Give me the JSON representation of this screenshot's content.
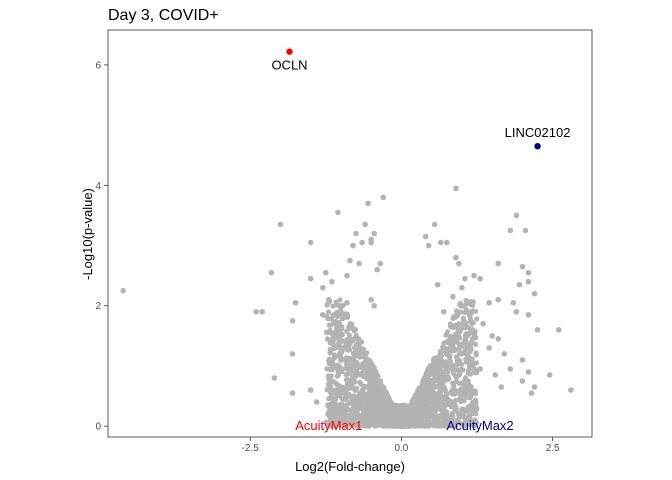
{
  "chart_data": {
    "type": "scatter",
    "title": "Day 3, COVID+",
    "xlabel": "Log2(Fold-change)",
    "ylabel": "-Log10(p-value)",
    "xlim": [
      -4.85,
      3.15
    ],
    "ylim": [
      -0.18,
      6.58
    ],
    "x_ticks": [
      -2.5,
      0.0,
      2.5
    ],
    "x_tick_labels": [
      "-2.5",
      "0.0",
      "2.5"
    ],
    "y_ticks": [
      0,
      2,
      4,
      6
    ],
    "y_tick_labels": [
      "0",
      "2",
      "4",
      "6"
    ],
    "grid": false,
    "legend": "none",
    "colors": {
      "background_points": "#b3b3b3",
      "oclin": "#ff0000",
      "linc": "#00007f"
    },
    "highlighted_points": [
      {
        "label": "OCLN",
        "x": -1.85,
        "y": 6.22,
        "color": "#ff0000"
      },
      {
        "label": "LINC02102",
        "x": 2.25,
        "y": 4.65,
        "color": "#00007f"
      }
    ],
    "annotations": [
      {
        "text": "AcuityMax1",
        "x": -1.2,
        "y": 0.0,
        "color": "#ff0000"
      },
      {
        "text": "AcuityMax2",
        "x": 1.3,
        "y": 0.0,
        "color": "#00007f"
      }
    ],
    "background_points": [
      [
        -4.6,
        2.25
      ],
      [
        -2.0,
        3.35
      ],
      [
        -2.15,
        2.55
      ],
      [
        -2.3,
        1.9
      ],
      [
        -2.4,
        1.9
      ],
      [
        -2.1,
        0.8
      ],
      [
        -1.8,
        1.75
      ],
      [
        -1.8,
        1.2
      ],
      [
        -1.8,
        0.55
      ],
      [
        -1.75,
        2.05
      ],
      [
        -1.5,
        2.45
      ],
      [
        -1.5,
        3.05
      ],
      [
        -1.3,
        2.3
      ],
      [
        -1.3,
        1.85
      ],
      [
        -1.25,
        2.55
      ],
      [
        -1.15,
        2.4
      ],
      [
        -1.05,
        3.55
      ],
      [
        -0.9,
        2.05
      ],
      [
        -0.9,
        2.5
      ],
      [
        -0.8,
        3.0
      ],
      [
        -0.75,
        3.2
      ],
      [
        -0.7,
        2.7
      ],
      [
        -0.65,
        3.05
      ],
      [
        -0.55,
        3.7
      ],
      [
        -0.5,
        2.1
      ],
      [
        -0.45,
        3.2
      ],
      [
        -0.4,
        2.6
      ],
      [
        -0.5,
        3.05
      ],
      [
        -0.3,
        3.8
      ],
      [
        -0.45,
        2.0
      ],
      [
        -0.35,
        2.7
      ],
      [
        -0.85,
        2.75
      ],
      [
        -1.1,
        1.5
      ],
      [
        -1.5,
        0.6
      ],
      [
        -1.2,
        0.7
      ],
      [
        -0.95,
        1.3
      ],
      [
        -0.6,
        3.35
      ],
      [
        -0.5,
        3.1
      ],
      [
        -1.2,
        2.1
      ],
      [
        -1.4,
        0.4
      ],
      [
        -0.85,
        0.75
      ],
      [
        0.4,
        3.15
      ],
      [
        0.45,
        3.0
      ],
      [
        0.55,
        3.35
      ],
      [
        0.65,
        3.05
      ],
      [
        0.75,
        3.05
      ],
      [
        0.9,
        3.95
      ],
      [
        0.9,
        2.8
      ],
      [
        1.0,
        2.3
      ],
      [
        1.05,
        2.45
      ],
      [
        1.3,
        2.45
      ],
      [
        1.35,
        1.7
      ],
      [
        1.45,
        1.3
      ],
      [
        1.5,
        1.5
      ],
      [
        1.6,
        1.45
      ],
      [
        1.6,
        2.7
      ],
      [
        1.8,
        3.25
      ],
      [
        1.6,
        2.1
      ],
      [
        1.7,
        1.2
      ],
      [
        1.85,
        2.05
      ],
      [
        1.9,
        1.9
      ],
      [
        1.9,
        3.5
      ],
      [
        2.0,
        2.65
      ],
      [
        2.05,
        3.25
      ],
      [
        2.0,
        1.1
      ],
      [
        1.95,
        2.35
      ],
      [
        1.8,
        0.95
      ],
      [
        2.1,
        2.55
      ],
      [
        2.1,
        2.4
      ],
      [
        2.0,
        0.75
      ],
      [
        2.2,
        2.2
      ],
      [
        2.1,
        1.85
      ],
      [
        2.25,
        1.6
      ],
      [
        2.2,
        0.65
      ],
      [
        2.1,
        0.9
      ],
      [
        2.6,
        1.6
      ],
      [
        2.8,
        0.6
      ],
      [
        1.45,
        2.05
      ],
      [
        1.2,
        2.5
      ],
      [
        0.95,
        2.7
      ],
      [
        0.6,
        2.35
      ],
      [
        0.7,
        1.9
      ],
      [
        0.85,
        2.15
      ],
      [
        1.55,
        0.85
      ],
      [
        1.1,
        0.75
      ],
      [
        1.3,
        0.95
      ],
      [
        1.65,
        0.65
      ],
      [
        2.15,
        0.55
      ],
      [
        2.45,
        0.85
      ]
    ]
  }
}
